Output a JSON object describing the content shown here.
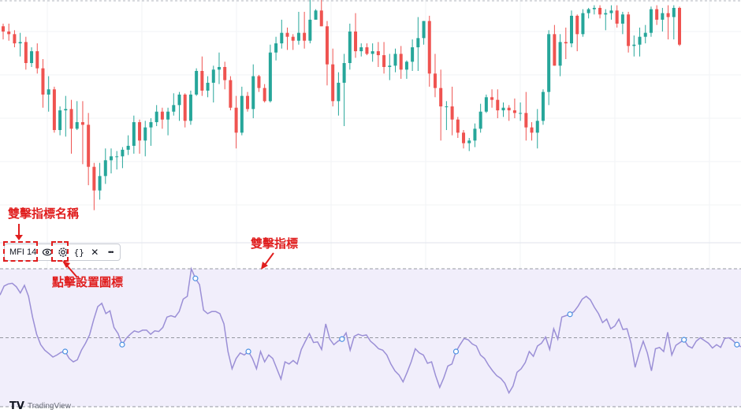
{
  "indicator": {
    "label": "MFI 14",
    "eye_icon": "eye-icon",
    "settings_icon": "gear-icon",
    "source_icon": "braces-icon",
    "source_glyph": "{}",
    "close_icon": "close-icon",
    "close_glyph": "✕",
    "more_icon": "more-icon",
    "more_glyph": "•••"
  },
  "annotations": {
    "double_click_name": "雙擊指標名稱",
    "double_click_indicator": "雙擊指標",
    "click_settings_icon": "點擊設置圖標"
  },
  "watermark": {
    "logo": "TV",
    "text": "TradingView"
  },
  "colors": {
    "up": "#26a69a",
    "down": "#ef5350",
    "mfi_line": "#9b8fd6",
    "mfi_band": "#f1eefb",
    "annotation": "#e01e1e"
  },
  "chart_data": [
    {
      "type": "candlestick",
      "description_series": "price",
      "candles": [
        [
          60,
          62,
          50,
          56
        ],
        [
          56,
          62,
          49,
          54
        ],
        [
          54,
          57,
          44,
          47
        ],
        [
          47,
          55,
          37,
          48
        ],
        [
          48,
          52,
          27,
          32
        ],
        [
          32,
          44,
          29,
          41
        ],
        [
          41,
          47,
          24,
          28
        ],
        [
          28,
          35,
          -2,
          8
        ],
        [
          8,
          22,
          -5,
          12
        ],
        [
          12,
          14,
          -21,
          -19
        ],
        [
          -19,
          -1,
          -23,
          -4
        ],
        [
          -4,
          7,
          -24,
          -3
        ],
        [
          -3,
          4,
          -37,
          -18
        ],
        [
          -18,
          3,
          -19,
          -13
        ],
        [
          -13,
          3,
          -45,
          -15
        ],
        [
          -15,
          -6,
          -61,
          -47
        ],
        [
          -47,
          -44,
          -80,
          -65
        ],
        [
          -65,
          -44,
          -72,
          -54
        ],
        [
          -54,
          -33,
          -60,
          -42
        ],
        [
          -42,
          -33,
          -52,
          -39
        ],
        [
          -39,
          -35,
          -49,
          -39
        ],
        [
          -39,
          -32,
          -48,
          -34
        ],
        [
          -34,
          -23,
          -38,
          -31
        ],
        [
          -31,
          -8,
          -37,
          -13
        ],
        [
          -13,
          -11,
          -37,
          -27
        ],
        [
          -27,
          -12,
          -39,
          -17
        ],
        [
          -17,
          -10,
          -31,
          -13
        ],
        [
          -13,
          0,
          -16,
          -5
        ],
        [
          -5,
          -2,
          -18,
          -11
        ],
        [
          -11,
          -2,
          -23,
          -5
        ],
        [
          -5,
          9,
          -8,
          0
        ],
        [
          0,
          10,
          -12,
          8
        ],
        [
          8,
          9,
          -17,
          -12
        ],
        [
          -12,
          11,
          -15,
          8
        ],
        [
          8,
          28,
          7,
          26
        ],
        [
          26,
          37,
          7,
          11
        ],
        [
          11,
          22,
          6,
          17
        ],
        [
          17,
          30,
          2,
          27
        ],
        [
          27,
          40,
          16,
          29
        ],
        [
          29,
          33,
          12,
          19
        ],
        [
          19,
          22,
          -4,
          -2
        ],
        [
          -2,
          7,
          -33,
          -21
        ],
        [
          -21,
          14,
          -23,
          7
        ],
        [
          7,
          10,
          -5,
          -3
        ],
        [
          -3,
          31,
          -10,
          22
        ],
        [
          22,
          23,
          10,
          13
        ],
        [
          13,
          16,
          2,
          3
        ],
        [
          3,
          46,
          2,
          40
        ],
        [
          40,
          52,
          34,
          47
        ],
        [
          47,
          65,
          43,
          55
        ],
        [
          55,
          59,
          42,
          52
        ],
        [
          52,
          54,
          42,
          49
        ],
        [
          49,
          71,
          46,
          55
        ],
        [
          55,
          71,
          43,
          49
        ],
        [
          49,
          80,
          47,
          65
        ],
        [
          65,
          73,
          66,
          72
        ],
        [
          72,
          80,
          60,
          60
        ],
        [
          60,
          64,
          15,
          31
        ],
        [
          31,
          43,
          -1,
          3
        ],
        [
          3,
          25,
          -8,
          17
        ],
        [
          17,
          39,
          -16,
          32
        ],
        [
          32,
          62,
          27,
          56
        ],
        [
          56,
          70,
          36,
          41
        ],
        [
          41,
          47,
          37,
          44
        ],
        [
          44,
          47,
          38,
          39
        ],
        [
          39,
          47,
          33,
          41
        ],
        [
          41,
          48,
          29,
          38
        ],
        [
          38,
          48,
          24,
          29
        ],
        [
          29,
          39,
          19,
          30
        ],
        [
          30,
          43,
          25,
          39
        ],
        [
          39,
          45,
          20,
          27
        ],
        [
          27,
          34,
          20,
          33
        ],
        [
          33,
          50,
          26,
          44
        ],
        [
          44,
          67,
          26,
          51
        ],
        [
          51,
          64,
          46,
          64
        ],
        [
          64,
          68,
          14,
          24
        ],
        [
          24,
          39,
          6,
          13
        ],
        [
          13,
          27,
          -27,
          -1
        ],
        [
          -1,
          3,
          -19,
          -1
        ],
        [
          -1,
          14,
          -23,
          -11
        ],
        [
          -11,
          -9,
          -25,
          -21
        ],
        [
          -21,
          -19,
          -33,
          -29
        ],
        [
          -29,
          -25,
          -35,
          -27
        ],
        [
          -27,
          -14,
          -32,
          -18
        ],
        [
          -18,
          1,
          -21,
          -5
        ],
        [
          -5,
          8,
          -6,
          6
        ],
        [
          6,
          12,
          -2,
          4
        ],
        [
          4,
          12,
          -10,
          -4
        ],
        [
          -4,
          2,
          -9,
          -2
        ],
        [
          -2,
          0,
          -12,
          -4
        ],
        [
          -4,
          5,
          -10,
          -6
        ],
        [
          -6,
          2,
          -12,
          -6
        ],
        [
          -6,
          10,
          -27,
          -17
        ],
        [
          -17,
          -13,
          -27,
          -21
        ],
        [
          -21,
          -3,
          -33,
          -12
        ],
        [
          -12,
          12,
          -15,
          10
        ],
        [
          10,
          57,
          0,
          54
        ],
        [
          54,
          61,
          30,
          30
        ],
        [
          30,
          54,
          22,
          48
        ],
        [
          48,
          59,
          35,
          47
        ],
        [
          47,
          72,
          44,
          68
        ],
        [
          68,
          69,
          41,
          54
        ],
        [
          54,
          73,
          52,
          70
        ],
        [
          70,
          74,
          66,
          73
        ],
        [
          73,
          76,
          69,
          74
        ],
        [
          74,
          76,
          66,
          69
        ],
        [
          69,
          73,
          57,
          70
        ],
        [
          70,
          76,
          65,
          72
        ],
        [
          72,
          76,
          59,
          62
        ],
        [
          62,
          71,
          54,
          69
        ],
        [
          69,
          71,
          40,
          45
        ],
        [
          45,
          53,
          37,
          46
        ],
        [
          46,
          59,
          37,
          52
        ],
        [
          52,
          61,
          47,
          55
        ],
        [
          55,
          75,
          52,
          73
        ],
        [
          73,
          76,
          61,
          65
        ],
        [
          65,
          74,
          56,
          70
        ],
        [
          70,
          76,
          50,
          67
        ],
        [
          67,
          76,
          50,
          74
        ],
        [
          74,
          75,
          45,
          46
        ]
      ]
    },
    {
      "type": "line",
      "title": "MFI 14",
      "values": [
        62,
        75,
        78,
        79,
        74,
        65,
        76,
        60,
        30,
        5,
        -10,
        -18,
        -23,
        -28,
        -25,
        -21,
        -20,
        -30,
        -35,
        -32,
        -18,
        -8,
        4,
        26,
        45,
        50,
        35,
        39,
        15,
        6,
        -10,
        -1,
        5,
        10,
        8,
        11,
        11,
        5,
        10,
        9,
        15,
        30,
        32,
        30,
        38,
        56,
        60,
        100,
        86,
        77,
        40,
        35,
        38,
        38,
        35,
        20,
        -20,
        -45,
        -30,
        -22,
        -25,
        -20,
        -30,
        -45,
        -20,
        -35,
        -25,
        -30,
        -45,
        -60,
        -35,
        -38,
        -33,
        -38,
        -17,
        -5,
        6,
        -7,
        -6,
        -17,
        20,
        -2,
        -10,
        -5,
        -2,
        7,
        -18,
        2,
        5,
        3,
        4,
        -5,
        -10,
        -16,
        -18,
        -25,
        -38,
        -48,
        -54,
        -64,
        -50,
        -35,
        -16,
        -22,
        -25,
        -37,
        -35,
        -55,
        -72,
        -58,
        -41,
        -38,
        -20,
        -10,
        -1,
        -3,
        -9,
        -12,
        -25,
        -30,
        -40,
        -48,
        -55,
        -59,
        -66,
        -80,
        -70,
        -50,
        -45,
        -36,
        -20,
        -27,
        -12,
        -8,
        1,
        -17,
        13,
        -2,
        30,
        32,
        34,
        38,
        46,
        56,
        60,
        55,
        44,
        35,
        22,
        27,
        13,
        17,
        27,
        12,
        13,
        -8,
        -43,
        -22,
        -5,
        -22,
        -48,
        -16,
        -14,
        -20,
        8,
        -25,
        -11,
        -7,
        -3,
        -12,
        -15,
        -5,
        0,
        -4,
        -8,
        -15,
        -10,
        -14,
        -1,
        0,
        -4,
        -10,
        -13
      ],
      "ylim": [
        -100,
        100
      ]
    }
  ]
}
